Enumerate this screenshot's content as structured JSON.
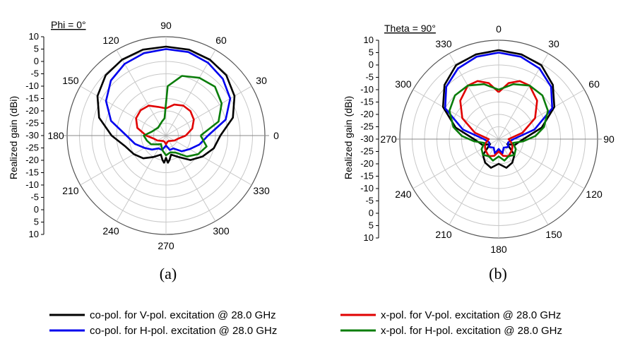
{
  "figure": {
    "legend": [
      {
        "label": "co-pol. for V-pol. excitation @ 28.0 GHz",
        "color": "#000000"
      },
      {
        "label": "x-pol. for V-pol. excitation @ 28.0 GHz",
        "color": "#e00000"
      },
      {
        "label": "co-pol. for H-pol. excitation @ 28.0 GHz",
        "color": "#0000ee"
      },
      {
        "label": "x-pol. for H-pol. excitation @ 28.0 GHz",
        "color": "#0a7d0a"
      }
    ]
  },
  "chart_data": [
    {
      "type": "polar",
      "title": "Phi = 0°",
      "caption": "(a)",
      "ylabel": "Realized gain (dBi)",
      "r_range": [
        -30,
        10
      ],
      "r_ticks": [
        10,
        5,
        0,
        -5,
        -10,
        -15,
        -20,
        -25,
        -30,
        -25,
        -20,
        -15,
        -10,
        -5,
        0,
        5,
        10
      ],
      "angle_labels": [
        "90",
        "60",
        "30",
        "0",
        "330",
        "300",
        "270",
        "240",
        "210",
        "180",
        "150",
        "120"
      ],
      "angle_orientation": "0 at right, counter-clockwise",
      "grid": true,
      "series": [
        {
          "name": "co-pol. for V-pol. excitation @ 28.0 GHz",
          "color": "#000000",
          "angles": [
            0,
            15,
            30,
            45,
            60,
            75,
            90,
            105,
            120,
            135,
            150,
            165,
            180,
            195,
            210,
            225,
            240,
            255,
            262,
            266,
            270,
            274,
            278,
            285,
            300,
            315,
            330,
            345,
            360
          ],
          "gain": [
            -8,
            -2,
            2,
            4.5,
            5.5,
            6,
            6,
            6,
            5.5,
            4.5,
            2,
            -2,
            -8,
            -13,
            -15,
            -17,
            -20,
            -22,
            -20,
            -19,
            -21,
            -19,
            -20,
            -22,
            -20,
            -16,
            -13,
            -10,
            -8
          ]
        },
        {
          "name": "co-pol. for H-pol. excitation @ 28.0 GHz",
          "color": "#0000ee",
          "angles": [
            0,
            15,
            30,
            45,
            60,
            75,
            90,
            105,
            120,
            135,
            150,
            165,
            180,
            195,
            210,
            225,
            240,
            255,
            270,
            285,
            300,
            315,
            330,
            345,
            360
          ],
          "gain": [
            -13,
            -5,
            0,
            2.5,
            4,
            5,
            5,
            4.5,
            3.5,
            1.5,
            -2,
            -7,
            -14,
            -17,
            -20,
            -22,
            -24,
            -24,
            -26,
            -24,
            -24,
            -21,
            -19,
            -16,
            -13
          ]
        },
        {
          "name": "x-pol. for V-pol. excitation @ 28.0 GHz",
          "color": "#e00000",
          "angles": [
            0,
            15,
            30,
            45,
            60,
            75,
            90,
            105,
            120,
            135,
            150,
            165,
            180,
            195,
            210,
            225,
            240,
            255,
            270,
            285,
            300,
            315,
            330,
            345,
            360
          ],
          "gain": [
            -22,
            -19,
            -17,
            -16,
            -16,
            -17,
            -19,
            -18,
            -16,
            -15.5,
            -16,
            -18,
            -22,
            -25,
            -26,
            -27,
            -27.5,
            -27.5,
            -26.5,
            -27.5,
            -27.5,
            -27,
            -26,
            -25,
            -22
          ]
        },
        {
          "name": "x-pol. for H-pol. excitation @ 28.0 GHz",
          "color": "#0a7d0a",
          "angles": [
            0,
            15,
            30,
            45,
            60,
            75,
            88,
            95,
            105,
            120,
            135,
            150,
            165,
            180,
            195,
            210,
            225,
            240,
            255,
            270,
            285,
            300,
            315,
            330,
            345,
            360
          ],
          "gain": [
            -16,
            -8,
            -4,
            -2,
            -3,
            -5,
            -10,
            -23,
            -24,
            -25,
            -25.5,
            -25,
            -24,
            -21,
            -22,
            -23,
            -25,
            -26,
            -24,
            -22,
            -23,
            -22,
            -18,
            -15,
            -13,
            -16
          ]
        }
      ]
    },
    {
      "type": "polar",
      "title": "Theta = 90°",
      "caption": "(b)",
      "ylabel": "Realized gain (dBi)",
      "r_range": [
        -30,
        10
      ],
      "r_ticks": [
        10,
        5,
        0,
        -5,
        -10,
        -15,
        -20,
        -25,
        -30,
        -25,
        -20,
        -15,
        -10,
        -5,
        0,
        5,
        10
      ],
      "angle_labels": [
        "0",
        "30",
        "60",
        "90",
        "120",
        "150",
        "180",
        "210",
        "240",
        "270",
        "300",
        "330"
      ],
      "angle_orientation": "0 at top, clockwise",
      "grid": true,
      "series": [
        {
          "name": "co-pol. for V-pol. excitation @ 28.0 GHz",
          "color": "#000000",
          "angles": [
            0,
            15,
            30,
            45,
            60,
            75,
            90,
            100,
            110,
            120,
            135,
            150,
            165,
            180,
            195,
            210,
            225,
            240,
            250,
            260,
            270,
            285,
            300,
            315,
            330,
            345,
            360
          ],
          "gain": [
            6,
            5.5,
            4.5,
            1,
            -4,
            -12,
            -20,
            -22,
            -23,
            -26,
            -21,
            -19,
            -18,
            -20,
            -18,
            -19,
            -21,
            -26,
            -23,
            -22,
            -20,
            -12,
            -4,
            1,
            4.5,
            5.5,
            6
          ]
        },
        {
          "name": "co-pol. for H-pol. excitation @ 28.0 GHz",
          "color": "#0000ee",
          "angles": [
            0,
            15,
            30,
            45,
            60,
            75,
            90,
            110,
            130,
            150,
            165,
            180,
            195,
            210,
            230,
            250,
            270,
            285,
            300,
            315,
            330,
            345,
            360
          ],
          "gain": [
            5,
            4.5,
            3,
            0,
            -5,
            -15,
            -24,
            -26,
            -25,
            -26,
            -24,
            -26,
            -24,
            -26,
            -25,
            -26,
            -24,
            -15,
            -5,
            0,
            3,
            4.5,
            5
          ]
        },
        {
          "name": "x-pol. for V-pol. excitation @ 28.0 GHz",
          "color": "#e00000",
          "angles": [
            0,
            10,
            20,
            30,
            45,
            60,
            75,
            90,
            110,
            130,
            150,
            165,
            180,
            195,
            210,
            230,
            250,
            270,
            285,
            300,
            315,
            330,
            340,
            350,
            360
          ],
          "gain": [
            -11,
            -7,
            -5,
            -5,
            -8,
            -13,
            -20,
            -26,
            -24,
            -23,
            -22,
            -23,
            -25,
            -23,
            -22,
            -23,
            -24,
            -26,
            -20,
            -13,
            -8,
            -5,
            -5,
            -7,
            -11
          ]
        },
        {
          "name": "x-pol. for H-pol. excitation @ 28.0 GHz",
          "color": "#0a7d0a",
          "angles": [
            0,
            15,
            30,
            45,
            60,
            75,
            85,
            95,
            105,
            120,
            135,
            150,
            165,
            180,
            195,
            210,
            225,
            240,
            255,
            265,
            275,
            285,
            300,
            315,
            330,
            345,
            360
          ],
          "gain": [
            -10,
            -7,
            -5,
            -5,
            -7,
            -11,
            -15,
            -20,
            -24,
            -22,
            -21,
            -22,
            -21,
            -23,
            -21,
            -22,
            -21,
            -22,
            -24,
            -20,
            -15,
            -11,
            -7,
            -5,
            -5,
            -7,
            -10
          ]
        }
      ]
    }
  ]
}
